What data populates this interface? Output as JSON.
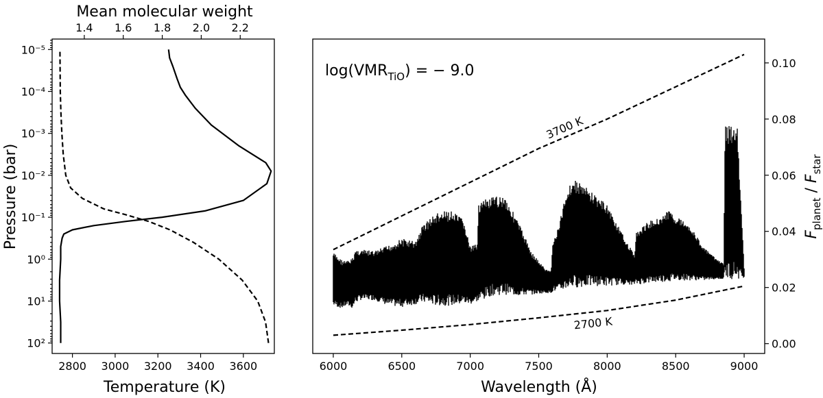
{
  "chart_data": [
    {
      "type": "line",
      "panel": "left",
      "xlabel": "Temperature (K)",
      "xlabel_top": "Mean molecular weight",
      "ylabel": "Pressure (bar)",
      "yscale": "log",
      "xlim": [
        2705,
        3745
      ],
      "ylim_log10": [
        2.25,
        -5.25
      ],
      "x_ticks": [
        2800,
        3000,
        3200,
        3400,
        3600
      ],
      "x_tick_labels": [
        "2800",
        "3000",
        "3200",
        "3400",
        "3600"
      ],
      "top_ticks": [
        1.4,
        1.6,
        1.8,
        2.0,
        2.2
      ],
      "top_tick_labels": [
        "1.4",
        "1.6",
        "1.8",
        "2.0",
        "2.2"
      ],
      "top_xlim": [
        1.235,
        2.375
      ],
      "y_ticks_log10": [
        -5,
        -4,
        -3,
        -2,
        -1,
        0,
        1,
        2
      ],
      "y_tick_labels": [
        "10⁻⁵",
        "10⁻⁴",
        "10⁻³",
        "10⁻²",
        "10⁻¹",
        "10⁰",
        "10¹",
        "10²"
      ],
      "series": [
        {
          "style": "solid",
          "axis": "bottom",
          "x": [
            2745,
            2745,
            2740,
            2740,
            2745,
            2745,
            2752,
            2760,
            2800,
            2900,
            3050,
            3220,
            3420,
            3600,
            3710,
            3730,
            3705,
            3580,
            3450,
            3375,
            3330,
            3305,
            3290,
            3270,
            3255,
            3250
          ],
          "log10p": [
            2,
            1.5,
            1,
            0.5,
            0,
            -0.3,
            -0.5,
            -0.6,
            -0.7,
            -0.8,
            -0.9,
            -1.0,
            -1.15,
            -1.4,
            -1.8,
            -2.1,
            -2.3,
            -2.7,
            -3.2,
            -3.6,
            -3.9,
            -4.1,
            -4.3,
            -4.6,
            -4.8,
            -5
          ]
        },
        {
          "style": "dashed",
          "axis": "top",
          "x": [
            2.345,
            2.33,
            2.29,
            2.21,
            2.09,
            1.96,
            1.84,
            1.73,
            1.62,
            1.5,
            1.39,
            1.33,
            1.305,
            1.292,
            1.285,
            1.28,
            1.277,
            1.275
          ],
          "log10p": [
            2,
            1.5,
            1,
            0.5,
            0,
            -0.4,
            -0.7,
            -0.9,
            -1.05,
            -1.2,
            -1.45,
            -1.7,
            -2,
            -2.5,
            -3,
            -3.5,
            -4,
            -5
          ]
        }
      ]
    },
    {
      "type": "line",
      "panel": "right",
      "annotation": "log(VMR_TiO) = − 9.0",
      "annotation_parts": {
        "prefix": "log(VMR",
        "sub": "TiO",
        "suffix": ") = − 9.0"
      },
      "xlabel": "Wavelength (Å)",
      "ylabel_parts": {
        "f1": "F",
        "s1": "planet",
        "mid": " / ",
        "f2": "F",
        "s2": "star"
      },
      "xlim": [
        5850,
        9150
      ],
      "ylim": [
        -0.0035,
        0.1085
      ],
      "x_ticks": [
        6000,
        6500,
        7000,
        7500,
        8000,
        8500,
        9000
      ],
      "x_tick_labels": [
        "6000",
        "6500",
        "7000",
        "7500",
        "8000",
        "8500",
        "9000"
      ],
      "y_ticks": [
        0.0,
        0.02,
        0.04,
        0.06,
        0.08,
        0.1
      ],
      "y_tick_labels": [
        "0.00",
        "0.02",
        "0.04",
        "0.06",
        "0.08",
        "0.10"
      ],
      "blackbody_lines": [
        {
          "label": "3700 K",
          "x": [
            6000,
            6500,
            7000,
            7500,
            8000,
            8500,
            9000
          ],
          "y": [
            0.0335,
            0.0455,
            0.0575,
            0.0695,
            0.08,
            0.0915,
            0.103
          ]
        },
        {
          "label": "2700 K",
          "x": [
            6000,
            6500,
            7000,
            7500,
            8000,
            8500,
            9000
          ],
          "y": [
            0.003,
            0.0048,
            0.0068,
            0.0092,
            0.0118,
            0.0155,
            0.0205
          ]
        }
      ],
      "spectrum_envelope": {
        "x": [
          6000,
          6060,
          6100,
          6140,
          6160,
          6200,
          6300,
          6400,
          6500,
          6600,
          6640,
          6660,
          6750,
          6850,
          6950,
          7000,
          7050,
          7060,
          7150,
          7250,
          7350,
          7450,
          7550,
          7590,
          7600,
          7650,
          7700,
          7750,
          7800,
          7900,
          8000,
          8100,
          8200,
          8210,
          8300,
          8400,
          8450,
          8500,
          8600,
          8700,
          8800,
          8850,
          8860,
          8900,
          8950,
          9000
        ],
        "upper": [
          0.0325,
          0.03,
          0.0295,
          0.0305,
          0.0335,
          0.0335,
          0.033,
          0.035,
          0.0375,
          0.0365,
          0.041,
          0.043,
          0.0465,
          0.0475,
          0.0445,
          0.0345,
          0.0355,
          0.0505,
          0.052,
          0.053,
          0.0435,
          0.0325,
          0.0265,
          0.026,
          0.0355,
          0.0425,
          0.0545,
          0.0585,
          0.0575,
          0.0535,
          0.0495,
          0.04,
          0.0315,
          0.0395,
          0.0435,
          0.0455,
          0.0475,
          0.0455,
          0.0425,
          0.0345,
          0.03,
          0.0285,
          0.0775,
          0.0775,
          0.077,
          0.0265
        ],
        "lower": [
          0.0135,
          0.0125,
          0.0135,
          0.0125,
          0.0145,
          0.0155,
          0.0155,
          0.0135,
          0.013,
          0.014,
          0.0145,
          0.0145,
          0.0135,
          0.0135,
          0.014,
          0.014,
          0.015,
          0.0145,
          0.017,
          0.0175,
          0.017,
          0.0175,
          0.018,
          0.018,
          0.0185,
          0.0185,
          0.0195,
          0.02,
          0.02,
          0.0205,
          0.0205,
          0.021,
          0.021,
          0.021,
          0.0215,
          0.022,
          0.022,
          0.0225,
          0.0225,
          0.0225,
          0.023,
          0.023,
          0.023,
          0.023,
          0.023,
          0.0235
        ]
      }
    }
  ]
}
